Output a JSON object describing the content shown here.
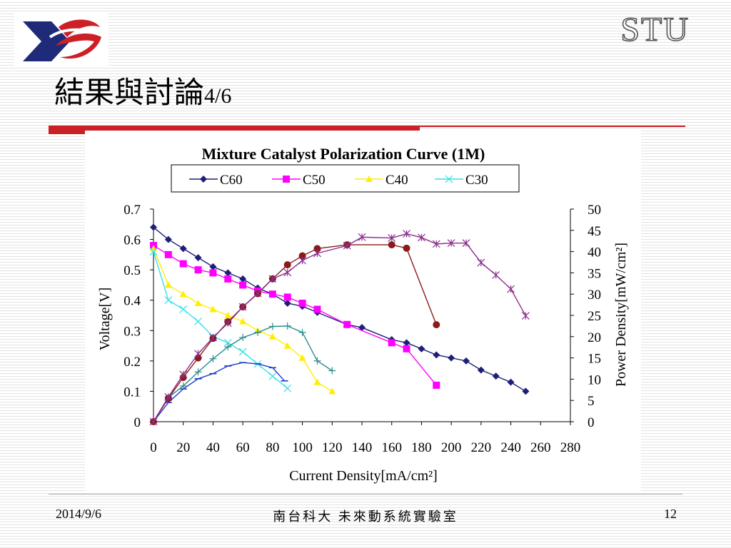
{
  "header": {
    "brand": "STU",
    "title_text": "結果與討論",
    "title_num": "4/6",
    "colors": {
      "accent_red": "#cc1f26",
      "logo_navy": "#1f2a78",
      "logo_red": "#cc1f26"
    }
  },
  "footer": {
    "date": "2014/9/6",
    "org": "南台科大 未來動系統實驗室",
    "page": "12"
  },
  "chart_data": {
    "type": "line",
    "title": "Mixture Catalyst Polarization Curve (1M)",
    "xlabel": "Current Density[mA/cm²]",
    "ylabel_left": "Voltage[V]",
    "ylabel_right": "Power Density[mW/cm²]",
    "xlim": [
      0,
      280
    ],
    "ylim_left": [
      0,
      0.7
    ],
    "ylim_right": [
      0,
      50
    ],
    "x_ticks": [
      "0",
      "20",
      "40",
      "60",
      "80",
      "100",
      "120",
      "140",
      "160",
      "180",
      "200",
      "220",
      "240",
      "260",
      "280"
    ],
    "y_left_ticks": [
      "0",
      "0.1",
      "0.2",
      "0.3",
      "0.4",
      "0.5",
      "0.6",
      "0.7"
    ],
    "y_right_ticks": [
      "0",
      "5",
      "10",
      "15",
      "20",
      "25",
      "30",
      "35",
      "40",
      "45",
      "50"
    ],
    "grid": false,
    "legend_position": "top",
    "legend": [
      "C60",
      "C50",
      "C40",
      "C30"
    ],
    "series": [
      {
        "name": "C60",
        "axis": "left",
        "color": "#1f1f7a",
        "marker": "diamond",
        "x": [
          0,
          10,
          20,
          30,
          40,
          50,
          60,
          70,
          80,
          90,
          100,
          110,
          130,
          140,
          160,
          170,
          180,
          190,
          200,
          210,
          220,
          230,
          240,
          250
        ],
        "y": [
          0.64,
          0.6,
          0.57,
          0.54,
          0.51,
          0.49,
          0.47,
          0.44,
          0.42,
          0.39,
          0.38,
          0.36,
          0.32,
          0.31,
          0.27,
          0.26,
          0.24,
          0.22,
          0.21,
          0.2,
          0.17,
          0.15,
          0.13,
          0.1
        ]
      },
      {
        "name": "C50",
        "axis": "left",
        "color": "#ff00ff",
        "marker": "square",
        "x": [
          0,
          10,
          20,
          30,
          40,
          50,
          60,
          70,
          80,
          90,
          100,
          110,
          130,
          160,
          170,
          190
        ],
        "y": [
          0.58,
          0.55,
          0.52,
          0.5,
          0.49,
          0.47,
          0.45,
          0.43,
          0.42,
          0.41,
          0.39,
          0.37,
          0.32,
          0.26,
          0.24,
          0.12
        ]
      },
      {
        "name": "C40",
        "axis": "left",
        "color": "#ffee00",
        "marker": "triangle",
        "x": [
          0,
          10,
          20,
          30,
          40,
          50,
          60,
          70,
          80,
          90,
          100,
          110,
          120
        ],
        "y": [
          0.57,
          0.45,
          0.42,
          0.39,
          0.37,
          0.35,
          0.33,
          0.3,
          0.28,
          0.25,
          0.21,
          0.13,
          0.1
        ]
      },
      {
        "name": "C30",
        "axis": "left",
        "color": "#33e0ee",
        "marker": "cross",
        "x": [
          0,
          10,
          20,
          30,
          40,
          50,
          60,
          70,
          80,
          90
        ],
        "y": [
          0.56,
          0.4,
          0.37,
          0.33,
          0.28,
          0.26,
          0.23,
          0.19,
          0.15,
          0.11
        ]
      },
      {
        "name": "",
        "axis": "right",
        "color": "#1a3cc8",
        "marker": "dash",
        "x": [
          0,
          10,
          20,
          30,
          40,
          50,
          60,
          70,
          80,
          88
        ],
        "y": [
          0,
          4.5,
          7.7,
          10.1,
          11.3,
          13.1,
          13.9,
          13.6,
          12.7,
          9.6
        ]
      },
      {
        "name": "",
        "axis": "right",
        "color": "#2a8c8c",
        "marker": "plus",
        "x": [
          0,
          10,
          20,
          30,
          40,
          50,
          60,
          70,
          80,
          90,
          100,
          110,
          120
        ],
        "y": [
          0,
          5.7,
          8.4,
          11.7,
          14.8,
          17.6,
          19.8,
          21.0,
          22.4,
          22.5,
          21.0,
          14.3,
          12.0
        ]
      },
      {
        "name": "",
        "axis": "right",
        "color": "#8b1a1a",
        "marker": "circle",
        "x": [
          0,
          10,
          20,
          30,
          40,
          50,
          60,
          70,
          80,
          90,
          100,
          110,
          130,
          160,
          170,
          190
        ],
        "y": [
          0,
          5.5,
          10.4,
          15.0,
          19.6,
          23.5,
          27.0,
          30.1,
          33.6,
          36.9,
          39.0,
          40.7,
          41.6,
          41.6,
          40.8,
          22.8
        ]
      },
      {
        "name": "",
        "axis": "right",
        "color": "#8b2e8b",
        "marker": "star",
        "x": [
          0,
          10,
          20,
          30,
          40,
          50,
          60,
          70,
          80,
          90,
          100,
          110,
          130,
          140,
          160,
          170,
          180,
          190,
          200,
          210,
          220,
          230,
          240,
          250
        ],
        "y": [
          0,
          5.8,
          11.1,
          16.0,
          19.8,
          23.2,
          27.0,
          30.2,
          33.6,
          35.1,
          37.9,
          39.6,
          41.4,
          43.4,
          43.2,
          44.2,
          43.3,
          41.8,
          42.0,
          42.0,
          37.4,
          34.5,
          31.2,
          24.9
        ]
      }
    ]
  }
}
